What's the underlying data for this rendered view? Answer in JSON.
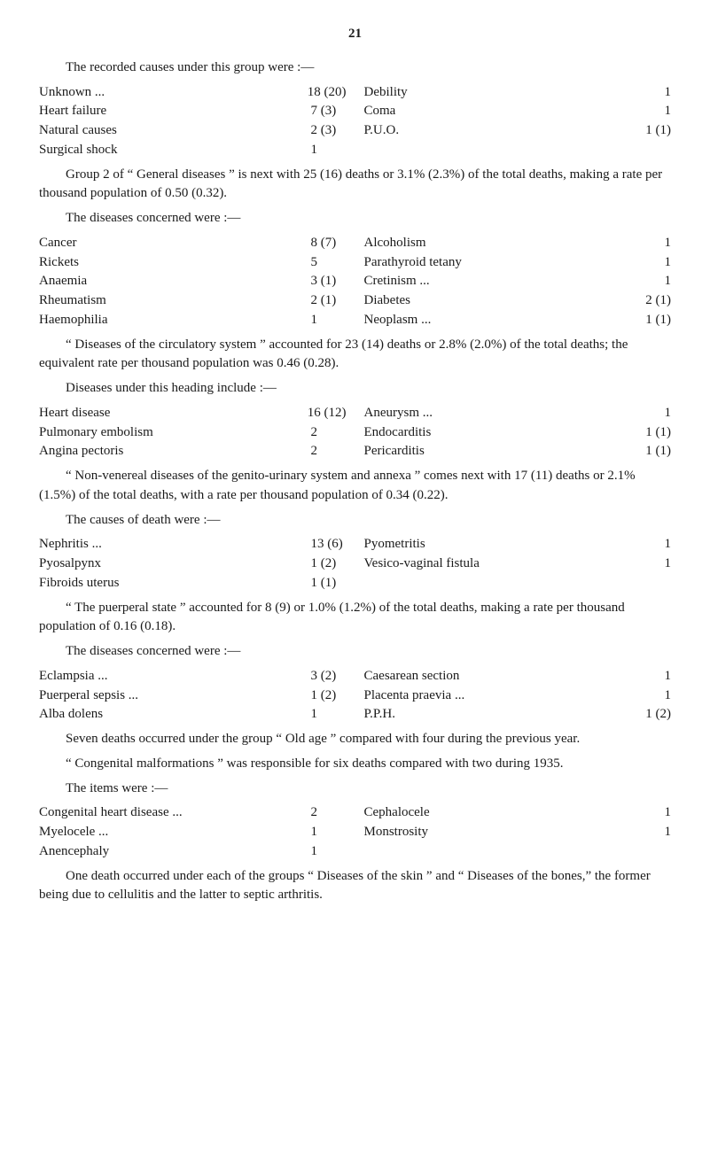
{
  "page_number": "21",
  "para1": "The recorded causes under this group were :—",
  "group1_left": [
    {
      "label": "Unknown ...",
      "val": "18 (20)"
    },
    {
      "label": "Heart failure",
      "val": "7 (3)"
    },
    {
      "label": "Natural causes",
      "val": "2 (3)"
    },
    {
      "label": "Surgical shock",
      "val": "1"
    }
  ],
  "group1_right": [
    {
      "label": "Debility",
      "val": "1"
    },
    {
      "label": "Coma",
      "val": "1"
    },
    {
      "label": "P.U.O.",
      "val": "1 (1)"
    }
  ],
  "para2": "Group 2 of “ General diseases ” is next with 25 (16) deaths or 3.1% (2.3%) of the total deaths, making a rate per thousand population of 0.50 (0.32).",
  "para3": "The diseases concerned were :—",
  "group2_left": [
    {
      "label": "Cancer",
      "val": "8 (7)"
    },
    {
      "label": "Rickets",
      "val": "5"
    },
    {
      "label": "Anaemia",
      "val": "3 (1)"
    },
    {
      "label": "Rheumatism",
      "val": "2 (1)"
    },
    {
      "label": "Haemophilia",
      "val": "1"
    }
  ],
  "group2_right": [
    {
      "label": "Alcoholism",
      "val": "1"
    },
    {
      "label": "Parathyroid tetany",
      "val": "1"
    },
    {
      "label": "Cretinism ...",
      "val": "1"
    },
    {
      "label": "Diabetes",
      "val": "2 (1)"
    },
    {
      "label": "Neoplasm ...",
      "val": "1 (1)"
    }
  ],
  "para4": "“ Diseases of the circulatory system ” accounted for 23 (14) deaths or 2.8% (2.0%) of the total deaths; the equivalent rate per thousand population was 0.46 (0.28).",
  "para5": "Diseases under this heading include :—",
  "group3_left": [
    {
      "label": "Heart disease",
      "val": "16 (12)"
    },
    {
      "label": "Pulmonary embolism",
      "val": "2"
    },
    {
      "label": "Angina pectoris",
      "val": "2"
    }
  ],
  "group3_right": [
    {
      "label": "Aneurysm ...",
      "val": "1"
    },
    {
      "label": "Endocarditis",
      "val": "1 (1)"
    },
    {
      "label": "Pericarditis",
      "val": "1 (1)"
    }
  ],
  "para6": "“ Non-venereal diseases of the genito-urinary system and annexa ” comes next with 17 (11) deaths or 2.1% (1.5%) of the total deaths, with a rate per thousand population of 0.34 (0.22).",
  "para7": "The causes of death were :—",
  "group4_left": [
    {
      "label": "Nephritis ...",
      "val": "13 (6)"
    },
    {
      "label": "Pyosalpynx",
      "val": "1 (2)"
    },
    {
      "label": "Fibroids uterus",
      "val": "1 (1)"
    }
  ],
  "group4_right": [
    {
      "label": "Pyometritis",
      "val": "1"
    },
    {
      "label": "Vesico-vaginal fistula",
      "val": "1"
    }
  ],
  "para8": "“ The puerperal state ” accounted for 8 (9) or 1.0% (1.2%) of the total deaths, making a rate per thousand population of 0.16 (0.18).",
  "para9": "The diseases concerned were :—",
  "group5_left": [
    {
      "label": "Eclampsia ...",
      "val": "3 (2)"
    },
    {
      "label": "Puerperal sepsis ...",
      "val": "1 (2)"
    },
    {
      "label": "Alba dolens",
      "val": "1"
    }
  ],
  "group5_right": [
    {
      "label": "Caesarean section",
      "val": "1"
    },
    {
      "label": "Placenta praevia ...",
      "val": "1"
    },
    {
      "label": "P.P.H.",
      "val": "1 (2)"
    }
  ],
  "para10": "Seven deaths occurred under the group “ Old age ” compared with four during the previous year.",
  "para11": "“ Congenital malformations ” was responsible for six deaths compared with two during 1935.",
  "para12": "The items were :—",
  "group6_left": [
    {
      "label": "Congenital heart disease ...",
      "val": "2"
    },
    {
      "label": "Myelocele ...",
      "val": "1"
    },
    {
      "label": "Anencephaly",
      "val": "1"
    }
  ],
  "group6_right": [
    {
      "label": "Cephalocele",
      "val": "1"
    },
    {
      "label": "Monstrosity",
      "val": "1"
    }
  ],
  "para13": "One death occurred under each of the groups “ Diseases of the skin ” and “ Diseases of the bones,” the former being due to cellulitis and the latter to septic arthritis."
}
